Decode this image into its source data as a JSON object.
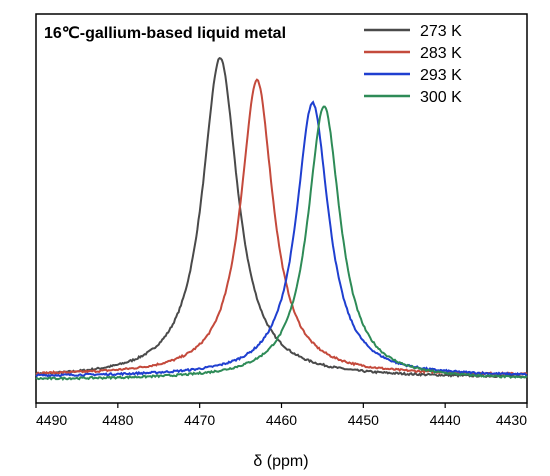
{
  "chart_data": {
    "type": "line",
    "title": "16℃-gallium-based liquid metal",
    "xlabel": "δ (ppm)",
    "ylabel": "",
    "xlim": [
      4490,
      4430
    ],
    "x_reversed": true,
    "x_ticks": [
      "4490",
      "4480",
      "4470",
      "4460",
      "4450",
      "4440",
      "4430"
    ],
    "y_ticks_shown": false,
    "ylim": [
      0,
      1.05
    ],
    "grid": false,
    "legend_position": "top-right",
    "series": [
      {
        "name": "273 K",
        "color": "#4a4a4a",
        "peak_x": 4467.5,
        "peak_y": 1.0,
        "baseline": 0.0,
        "hwhm": 2.6
      },
      {
        "name": "283 K",
        "color": "#c44a3c",
        "peak_x": 4463.0,
        "peak_y": 0.93,
        "baseline": 0.008,
        "hwhm": 2.4
      },
      {
        "name": "293 K",
        "color": "#1f3fd0",
        "peak_x": 4456.2,
        "peak_y": 0.86,
        "baseline": 0.004,
        "hwhm": 2.4
      },
      {
        "name": "300 K",
        "color": "#2e8b57",
        "peak_x": 4454.8,
        "peak_y": 0.85,
        "baseline": -0.006,
        "hwhm": 2.4
      }
    ]
  }
}
